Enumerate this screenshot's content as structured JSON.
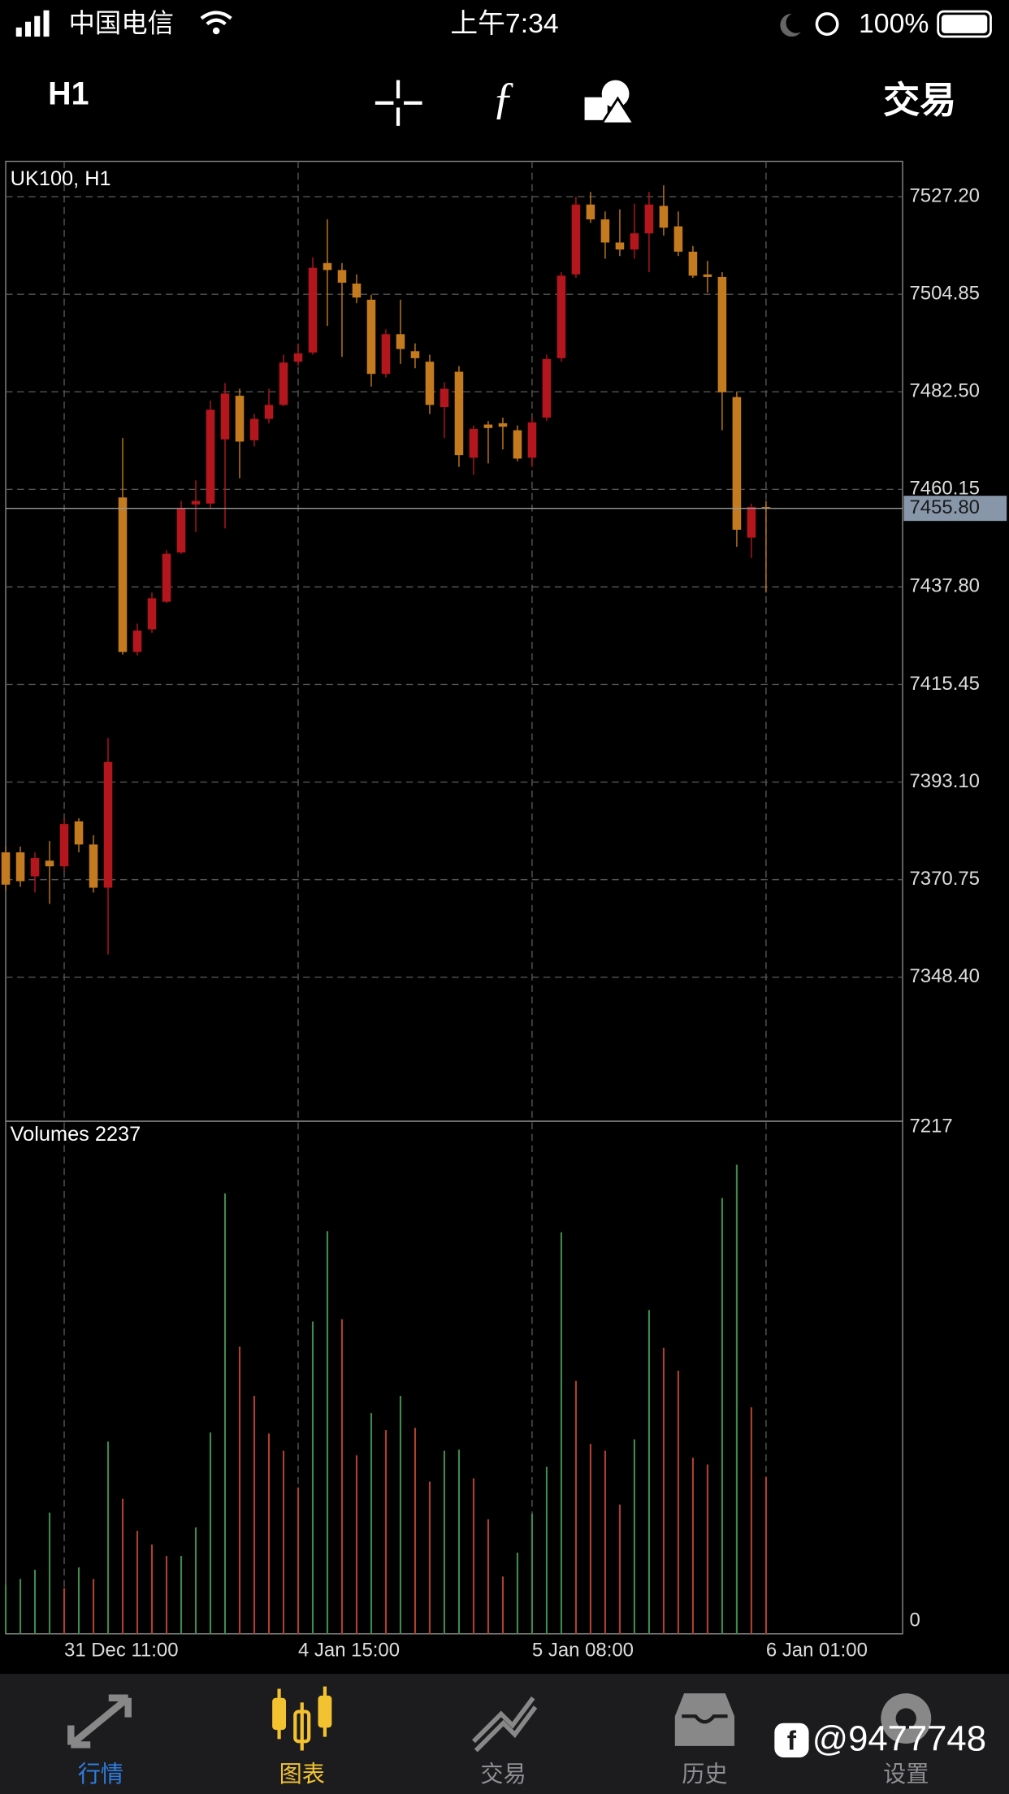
{
  "status_bar": {
    "carrier": "中国电信",
    "time": "上午7:34",
    "battery": "100%"
  },
  "toolbar": {
    "timeframe": "H1",
    "trade": "交易"
  },
  "chart_data": {
    "type": "candlestick",
    "title": "UK100, H1",
    "categories": [
      null,
      null,
      null,
      null,
      "31 Dec 11:00",
      null,
      null,
      null,
      null,
      null,
      null,
      null,
      null,
      null,
      null,
      null,
      null,
      null,
      null,
      null,
      "4 Jan 15:00",
      null,
      null,
      null,
      null,
      null,
      null,
      null,
      null,
      null,
      null,
      null,
      null,
      null,
      null,
      null,
      "5 Jan 08:00",
      null,
      null,
      null,
      null,
      null,
      null,
      null,
      null,
      null,
      null,
      null,
      null,
      null,
      null,
      null,
      "6 Jan 01:00"
    ],
    "open": [
      7377.0,
      7377.0,
      7371.5,
      7375.1,
      7373.8,
      7384.1,
      7378.8,
      7368.9,
      7458.3,
      7422.9,
      7428.1,
      7434.4,
      7445.7,
      7456.7,
      7456.9,
      7471.6,
      7481.6,
      7471.4,
      7476.3,
      7479.5,
      7489.4,
      7491.5,
      7512.0,
      7510.4,
      7507.3,
      7503.6,
      7486.6,
      7495.7,
      7491.8,
      7489.4,
      7479.0,
      7487.1,
      7467.4,
      7475.0,
      7475.3,
      7473.7,
      7467.4,
      7476.6,
      7490.2,
      7509.4,
      7525.4,
      7522.0,
      7516.7,
      7515.1,
      7518.8,
      7525.1,
      7520.4,
      7514.6,
      7509.4,
      7508.8,
      7481.3,
      7449.1,
      7456.1
    ],
    "high": [
      7378.3,
      7378.3,
      7377.0,
      7379.6,
      7384.8,
      7384.8,
      7380.9,
      7403.2,
      7471.9,
      7429.4,
      7436.5,
      7446.2,
      7457.5,
      7462.2,
      7480.5,
      7484.5,
      7483.2,
      7477.4,
      7483.2,
      7491.0,
      7493.6,
      7513.3,
      7522.0,
      7512.0,
      7509.4,
      7504.7,
      7496.8,
      7503.6,
      7493.6,
      7491.0,
      7484.7,
      7488.4,
      7474.8,
      7475.8,
      7476.6,
      7474.8,
      7476.6,
      7491.0,
      7509.9,
      7527.2,
      7528.3,
      7523.8,
      7524.3,
      7525.6,
      7528.3,
      7529.8,
      7523.8,
      7515.9,
      7512.5,
      7509.9,
      7482.6,
      7456.9,
      7457.5
    ],
    "low": [
      7368.3,
      7369.1,
      7367.8,
      7365.2,
      7372.5,
      7377.0,
      7367.8,
      7353.6,
      7422.3,
      7422.1,
      7427.3,
      7434.1,
      7445.4,
      7450.4,
      7455.6,
      7451.2,
      7462.7,
      7470.0,
      7475.3,
      7479.2,
      7488.4,
      7491.0,
      7497.6,
      7490.5,
      7502.8,
      7483.7,
      7485.8,
      7488.9,
      7487.9,
      7477.4,
      7471.9,
      7465.3,
      7463.5,
      7466.1,
      7469.3,
      7466.6,
      7465.3,
      7475.8,
      7489.4,
      7508.6,
      7521.2,
      7513.0,
      7513.6,
      7513.0,
      7509.9,
      7518.3,
      7513.6,
      7508.6,
      7505.2,
      7473.7,
      7447.0,
      7444.4,
      7436.5
    ],
    "close": [
      7369.6,
      7370.4,
      7375.7,
      7373.8,
      7383.5,
      7378.8,
      7368.9,
      7397.7,
      7422.9,
      7427.8,
      7435.2,
      7445.4,
      7455.9,
      7457.5,
      7478.4,
      7482.1,
      7471.1,
      7476.3,
      7479.5,
      7489.2,
      7491.3,
      7510.9,
      7510.4,
      7507.5,
      7504.1,
      7486.6,
      7495.7,
      7492.3,
      7490.2,
      7479.5,
      7483.2,
      7468.0,
      7474.0,
      7474.2,
      7474.5,
      7467.2,
      7475.5,
      7490.0,
      7509.1,
      7525.4,
      7522.0,
      7516.7,
      7515.1,
      7518.8,
      7525.4,
      7520.1,
      7514.6,
      7509.1,
      7508.8,
      7482.4,
      7450.9,
      7456.1,
      7455.8
    ],
    "up_color": "#b3161c",
    "down_color": "#c47a1e",
    "ylim": [
      7315.4,
      7535.3
    ],
    "yticks": [
      {
        "value": 7527.2,
        "label": "7527.20"
      },
      7504.85,
      {
        "value": 7482.5,
        "label": "7482.50"
      },
      7460.15,
      {
        "value": 7437.8,
        "label": "7437.80"
      },
      7415.45,
      {
        "value": 7393.1,
        "label": "7393.10"
      },
      {
        "value": 7370.75,
        "label": "7370.75"
      },
      {
        "value": 7348.4,
        "label": "7348.40"
      }
    ],
    "current_price": {
      "value": 7455.8,
      "label": "7455.80"
    },
    "grid": true,
    "volume": {
      "label": "Volumes",
      "values": [
        700,
        782,
        912,
        1727,
        652,
        945,
        782,
        2737,
        1922,
        1466,
        1271,
        1108,
        1108,
        1515,
        2867,
        6272,
        4089,
        3388,
        2851,
        2606,
        2085,
        4447,
        5734,
        4480,
        2541,
        3144,
        2900,
        3388,
        2932,
        2167,
        2606,
        2623,
        2215,
        1629,
        815,
        1157,
        1710,
        2378,
        5718,
        3600,
        2704,
        2606,
        1841,
        2769,
        4610,
        4073,
        3747,
        2509,
        2411,
        6206,
        6679,
        3225,
        2237
      ],
      "up_color": "#3f8a4e",
      "down_color": "#b0402c",
      "ylim": [
        0,
        7298
      ],
      "yticks": [
        0,
        7217
      ]
    }
  },
  "tab_bar": {
    "tabs": [
      "行情",
      "图表",
      "交易",
      "历史",
      "设置"
    ]
  },
  "watermark": "@9477748"
}
